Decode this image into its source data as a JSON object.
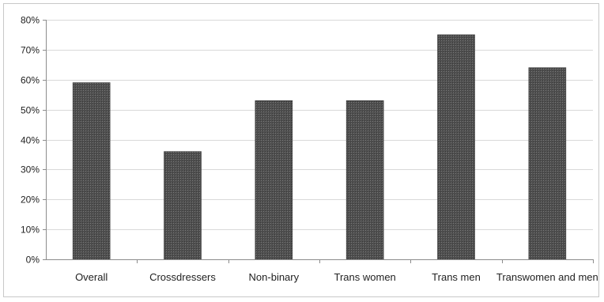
{
  "chart_data": {
    "type": "bar",
    "title": "",
    "xlabel": "",
    "ylabel": "",
    "categories": [
      "Overall",
      "Crossdressers",
      "Non-binary",
      "Trans women",
      "Trans men",
      "Transwomen and men"
    ],
    "values": [
      0.59,
      0.36,
      0.53,
      0.53,
      0.75,
      0.64
    ],
    "ylim": [
      0,
      0.8
    ],
    "yticks": [
      0,
      0.1,
      0.2,
      0.3,
      0.4,
      0.5,
      0.6,
      0.7,
      0.8
    ],
    "ytick_labels": [
      "0%",
      "10%",
      "20%",
      "30%",
      "40%",
      "50%",
      "60%",
      "70%",
      "80%"
    ],
    "grid": true,
    "legend": "none",
    "bar_color": "#5a5a5a",
    "bar_pattern": "dark-crosshatch",
    "gridline_color": "#d9d9d9",
    "axis_color": "#8c8c8c"
  }
}
